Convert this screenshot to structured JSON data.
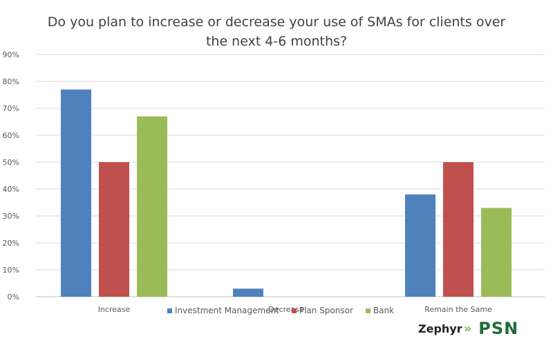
{
  "chart_data": {
    "type": "bar",
    "title": "Do you plan to increase or decrease your use of SMAs for clients over the next 4-6 months?",
    "categories": [
      "Increase",
      "Decrease",
      "Remain the Same"
    ],
    "series": [
      {
        "name": "Investment Management",
        "color": "#4f81bd",
        "values": [
          77,
          3,
          38
        ]
      },
      {
        "name": "Plan Sponsor",
        "color": "#c0504d",
        "values": [
          50,
          0,
          50
        ]
      },
      {
        "name": "Bank",
        "color": "#9bbb59",
        "values": [
          67,
          0,
          33
        ]
      }
    ],
    "ylim": [
      0,
      90
    ],
    "yticks": [
      "0%",
      "10%",
      "20%",
      "30%",
      "40%",
      "50%",
      "60%",
      "70%",
      "80%",
      "90%"
    ],
    "xlabel": "",
    "ylabel": "",
    "grid": true,
    "legend": "bottom"
  },
  "logos": {
    "zephyr": "Zephyr",
    "psn": "PSN"
  }
}
